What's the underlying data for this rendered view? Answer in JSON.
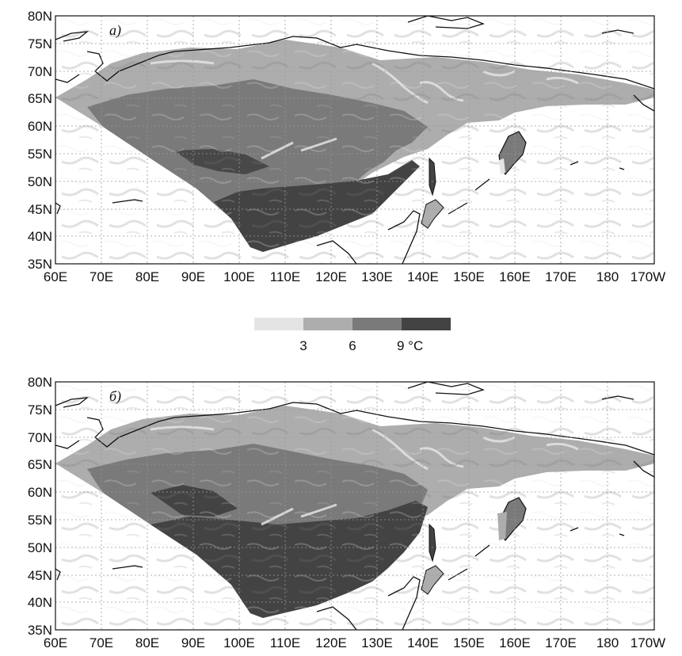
{
  "colors": {
    "class_0_3": "#e4e4e4",
    "class_3_6": "#adadad",
    "class_6_9": "#7a7a7a",
    "class_9_plus": "#434343",
    "coastline": "#111111",
    "grid": "#9a9a9a"
  },
  "axes": {
    "x_ticks": [
      "60E",
      "70E",
      "80E",
      "90E",
      "100E",
      "110E",
      "120E",
      "130E",
      "140E",
      "150E",
      "160E",
      "170E",
      "180",
      "170W"
    ],
    "y_ticks": [
      "35N",
      "40N",
      "45N",
      "50N",
      "55N",
      "60N",
      "65N",
      "70N",
      "75N",
      "80N"
    ],
    "lon_range": [
      60,
      190
    ],
    "lat_range": [
      35,
      80
    ],
    "grid": "dotted"
  },
  "colorbar": {
    "tick_labels": [
      "3",
      "6",
      "9 °C"
    ],
    "breaks": [
      3,
      6,
      9
    ],
    "classes": [
      "class_0_3",
      "class_3_6",
      "class_6_9",
      "class_9_plus"
    ]
  },
  "panels": [
    {
      "label": "а)",
      "warm_extent": "smaller"
    },
    {
      "label": "б)",
      "warm_extent": "larger"
    }
  ]
}
